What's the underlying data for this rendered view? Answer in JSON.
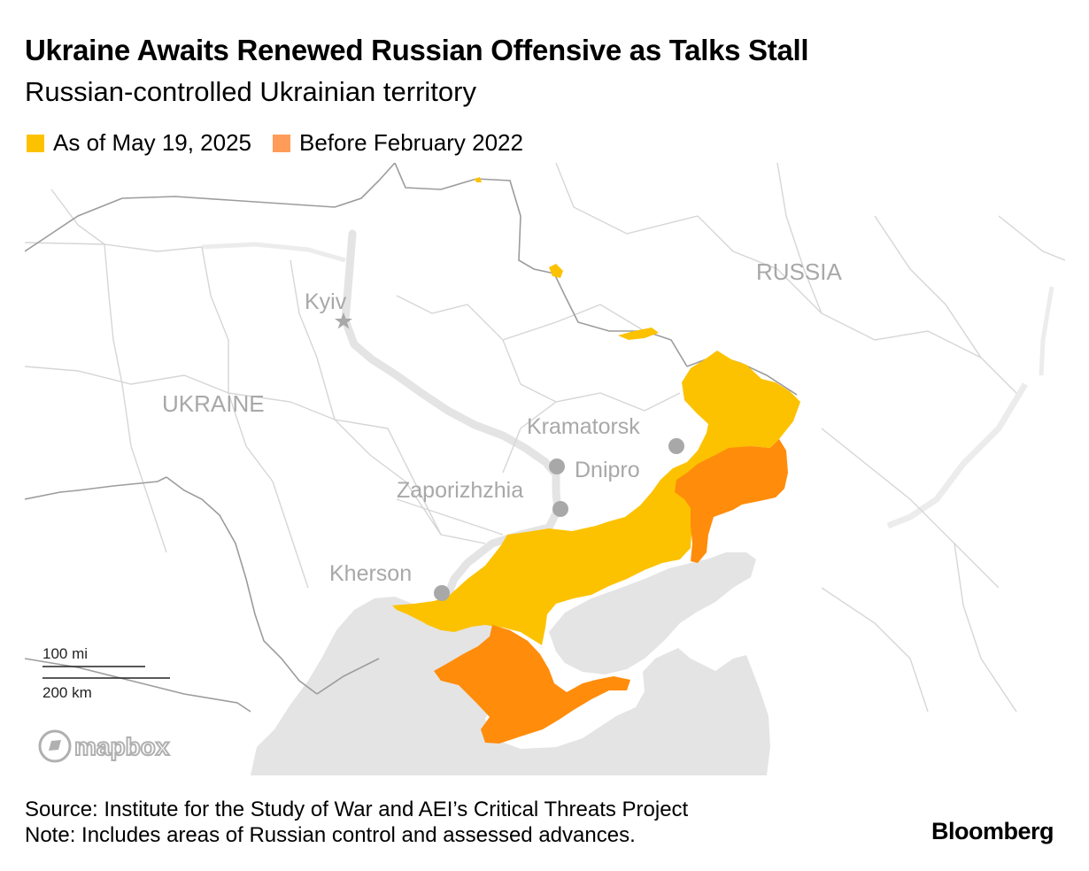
{
  "title": "Ukraine Awaits Renewed Russian Offensive as Talks Stall",
  "subtitle": "Russian-controlled Ukrainian territory",
  "legend": [
    {
      "label": "As of May 19, 2025",
      "color": "#fcc200"
    },
    {
      "label": "Before February 2022",
      "color": "#ff8c0a"
    }
  ],
  "colors": {
    "land": "#ffffff",
    "sea": "#e4e4e4",
    "river": "#e4e4e4",
    "border": "#c8c8c8",
    "national_border": "#a0a0a0",
    "city_dot": "#a8a8a8"
  },
  "map": {
    "countries": {
      "russia": "RUSSIA",
      "ukraine": "UKRAINE"
    },
    "cities": {
      "kyiv": "Kyiv",
      "kramatorsk": "Kramatorsk",
      "dnipro": "Dnipro",
      "zaporizhzhia": "Zaporizhzhia",
      "kherson": "Kherson"
    },
    "scale": {
      "miles": "100 mi",
      "km": "200 km"
    },
    "attribution": "mapbox"
  },
  "footer": {
    "source": "Source: Institute for the Study of War and AEI’s Critical Threats Project",
    "note": "Note: Includes areas of Russian control and assessed advances."
  },
  "brand": "Bloomberg"
}
